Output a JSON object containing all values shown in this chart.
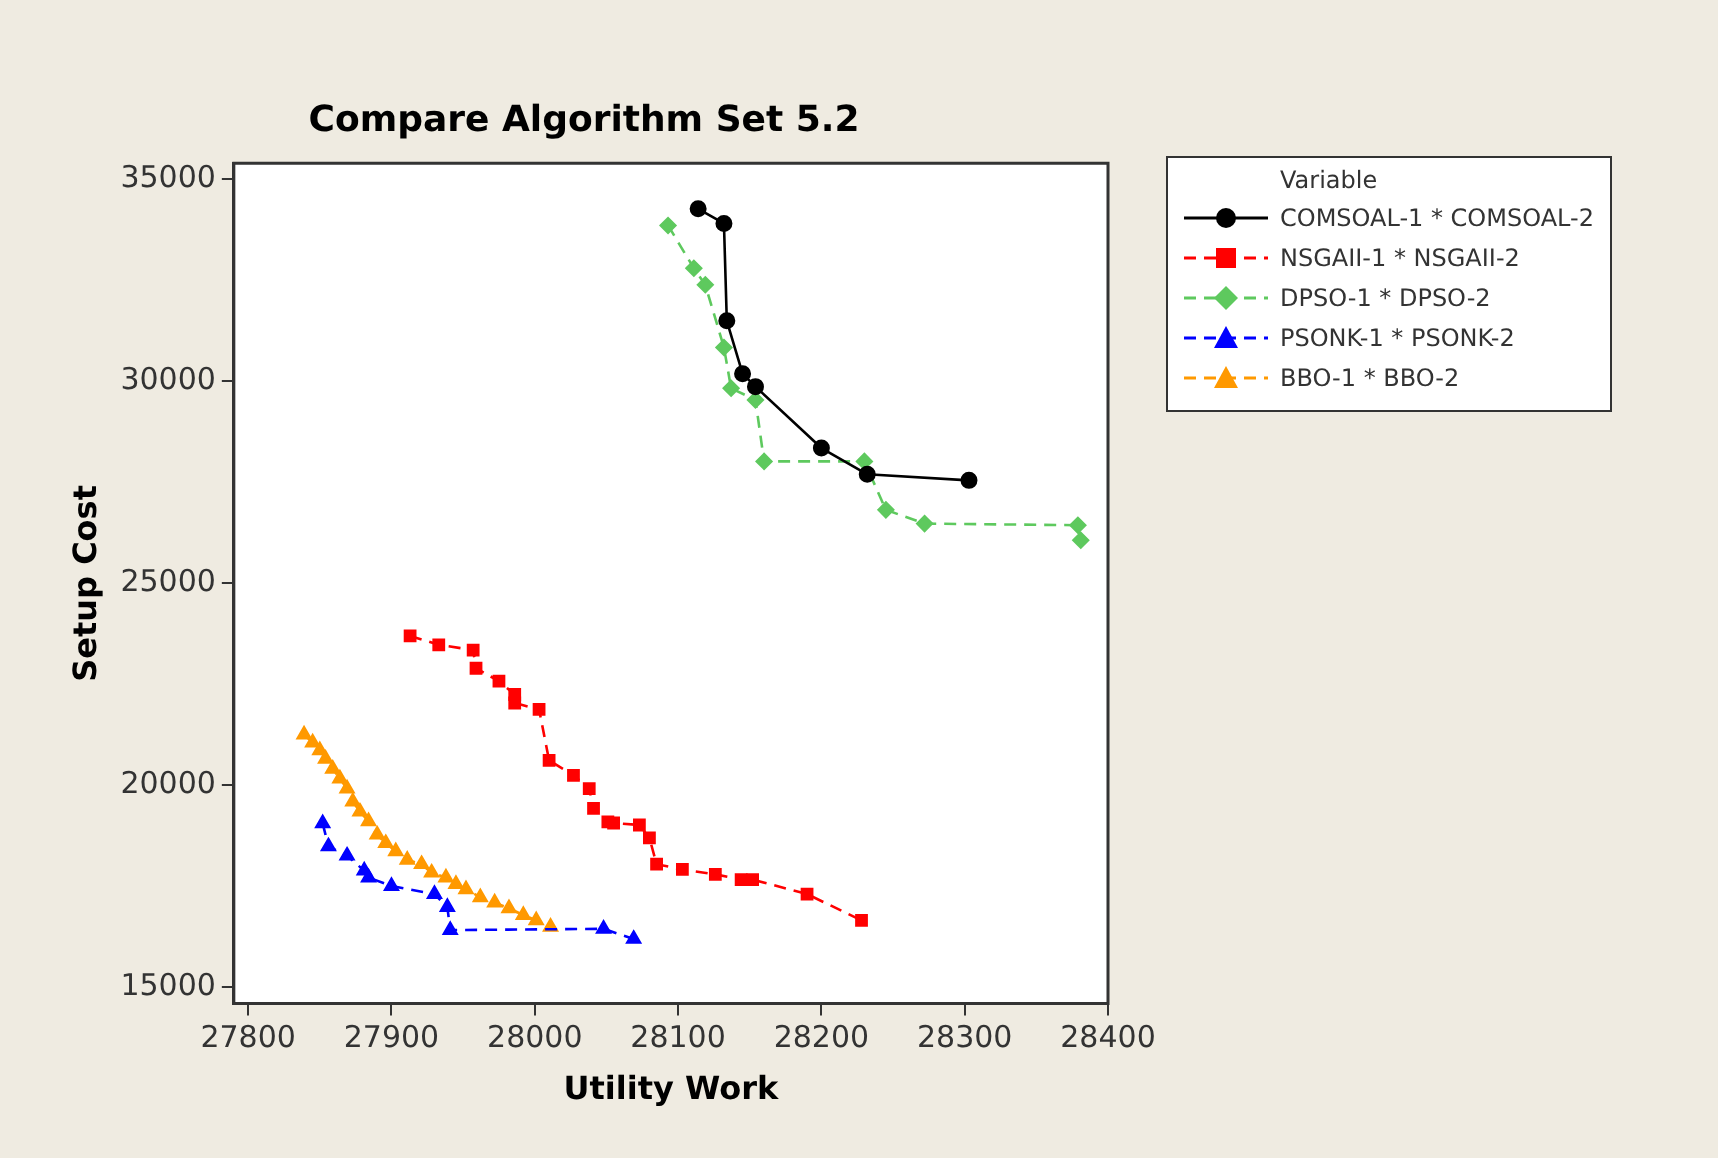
{
  "chart_data": {
    "type": "line",
    "title": "Compare Algorithm Set 5.2",
    "xlabel": "Utility Work",
    "ylabel": "Setup Cost",
    "legend_title": "Variable",
    "legend": "top right",
    "grid": false,
    "xlim": [
      27790,
      28400
    ],
    "xticks": [
      27800,
      27900,
      28000,
      28100,
      28200,
      28300,
      28400
    ],
    "ylim": [
      14600,
      35400
    ],
    "yticks": [
      15000,
      20000,
      25000,
      30000,
      35000
    ],
    "series": [
      {
        "name": "COMSOAL-1 * COMSOAL-2",
        "color": "#000000",
        "marker": "circle",
        "line_style": "solid",
        "x": [
          28114,
          28132,
          28134,
          28145,
          28154,
          28200,
          28232,
          28303
        ],
        "values": [
          34270,
          33910,
          31500,
          30190,
          29870,
          28350,
          27700,
          27550
        ]
      },
      {
        "name": "NSGAII-1 * NSGAII-2",
        "color": "#ff0000",
        "marker": "square",
        "line_style": "dashed",
        "x": [
          27913,
          27933,
          27957,
          27959,
          27975,
          27986,
          27986,
          28003,
          28010,
          28027,
          28038,
          28041,
          28051,
          28055,
          28073,
          28080,
          28085,
          28103,
          28126,
          28144,
          28152,
          28190,
          28228
        ],
        "values": [
          23700,
          23480,
          23350,
          22900,
          22580,
          22250,
          22040,
          21880,
          20620,
          20250,
          19920,
          19430,
          19100,
          19070,
          19020,
          18700,
          18050,
          17920,
          17800,
          17670,
          17670,
          17310,
          16660
        ]
      },
      {
        "name": "DPSO-1 * DPSO-2",
        "color": "#5ec95e",
        "marker": "diamond",
        "line_style": "dashed",
        "x": [
          28093,
          28111,
          28119,
          28132,
          28137,
          28154,
          28160,
          28230,
          28245,
          28272,
          28379,
          28381
        ],
        "values": [
          33860,
          32800,
          32390,
          30840,
          29830,
          29540,
          28020,
          28020,
          26820,
          26480,
          26440,
          26070
        ]
      },
      {
        "name": "PSONK-1 * PSONK-2",
        "color": "#0000ff",
        "marker": "triangle",
        "line_style": "dashed",
        "x": [
          27852,
          27856,
          27869,
          27881,
          27884,
          27900,
          27930,
          27939,
          27941,
          28048,
          28069
        ],
        "values": [
          19060,
          18490,
          18260,
          17890,
          17720,
          17510,
          17310,
          16990,
          16420,
          16450,
          16200
        ]
      },
      {
        "name": "BBO-1 * BBO-2",
        "color": "#ff9900",
        "marker": "triangle",
        "line_style": "dashed",
        "x": [
          27839,
          27845,
          27850,
          27854,
          27859,
          27864,
          27869,
          27873,
          27878,
          27884,
          27890,
          27896,
          27903,
          27911,
          27921,
          27928,
          27938,
          27945,
          27952,
          27962,
          27972,
          27982,
          27992,
          28001,
          28011
        ],
        "values": [
          21260,
          21060,
          20870,
          20660,
          20410,
          20170,
          19920,
          19600,
          19350,
          19110,
          18780,
          18570,
          18370,
          18160,
          18050,
          17840,
          17720,
          17560,
          17430,
          17230,
          17100,
          16960,
          16790,
          16660,
          16500
        ]
      }
    ]
  }
}
